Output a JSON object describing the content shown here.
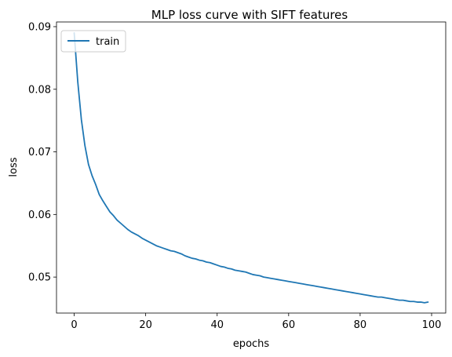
{
  "chart_data": {
    "type": "line",
    "title": "MLP loss curve with SIFT features",
    "xlabel": "epochs",
    "ylabel": "loss",
    "xlim": [
      -4.95,
      103.95
    ],
    "ylim": [
      0.04425,
      0.09075
    ],
    "xticks": [
      0,
      20,
      40,
      60,
      80,
      100
    ],
    "yticks": [
      0.05,
      0.06,
      0.07,
      0.08,
      0.09
    ],
    "xtick_labels": [
      "0",
      "20",
      "40",
      "60",
      "80",
      "100"
    ],
    "ytick_labels": [
      "0.05",
      "0.06",
      "0.07",
      "0.08",
      "0.09"
    ],
    "legend": {
      "placement": "upper-left"
    },
    "grid": false,
    "series": [
      {
        "name": "train",
        "color": "#1f77b4",
        "x": [
          0,
          1,
          2,
          3,
          4,
          5,
          6,
          7,
          8,
          9,
          10,
          11,
          12,
          13,
          14,
          15,
          16,
          17,
          18,
          19,
          20,
          21,
          22,
          23,
          24,
          25,
          26,
          27,
          28,
          29,
          30,
          31,
          32,
          33,
          34,
          35,
          36,
          37,
          38,
          39,
          40,
          41,
          42,
          43,
          44,
          45,
          46,
          47,
          48,
          49,
          50,
          51,
          52,
          53,
          54,
          55,
          56,
          57,
          58,
          59,
          60,
          61,
          62,
          63,
          64,
          65,
          66,
          67,
          68,
          69,
          70,
          71,
          72,
          73,
          74,
          75,
          76,
          77,
          78,
          79,
          80,
          81,
          82,
          83,
          84,
          85,
          86,
          87,
          88,
          89,
          90,
          91,
          92,
          93,
          94,
          95,
          96,
          97,
          98,
          99
        ],
        "y": [
          0.089,
          0.0812,
          0.0752,
          0.071,
          0.068,
          0.0662,
          0.0648,
          0.0632,
          0.0622,
          0.0613,
          0.0604,
          0.0598,
          0.0591,
          0.0586,
          0.0581,
          0.0576,
          0.0572,
          0.0569,
          0.0566,
          0.0562,
          0.0559,
          0.0556,
          0.0553,
          0.055,
          0.0548,
          0.0546,
          0.0544,
          0.0542,
          0.0541,
          0.0539,
          0.0537,
          0.0534,
          0.0532,
          0.053,
          0.0529,
          0.0527,
          0.0526,
          0.0524,
          0.0523,
          0.0521,
          0.0519,
          0.0517,
          0.0516,
          0.0514,
          0.0513,
          0.0511,
          0.051,
          0.0509,
          0.0508,
          0.0506,
          0.0504,
          0.0503,
          0.0502,
          0.05,
          0.0499,
          0.0498,
          0.0497,
          0.0496,
          0.0495,
          0.0494,
          0.0493,
          0.0492,
          0.0491,
          0.049,
          0.0489,
          0.0488,
          0.0487,
          0.0486,
          0.0485,
          0.0484,
          0.0483,
          0.0482,
          0.0481,
          0.048,
          0.0479,
          0.0478,
          0.0477,
          0.0476,
          0.0475,
          0.0474,
          0.0473,
          0.0472,
          0.0471,
          0.047,
          0.0469,
          0.0468,
          0.0468,
          0.0467,
          0.0466,
          0.0465,
          0.0464,
          0.0463,
          0.0463,
          0.0462,
          0.0461,
          0.0461,
          0.046,
          0.046,
          0.0459,
          0.046
        ]
      }
    ]
  }
}
